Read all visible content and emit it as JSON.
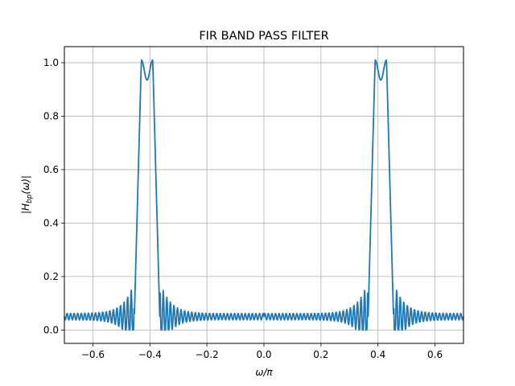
{
  "chart_data": {
    "type": "line",
    "title": "FIR BAND PASS FILTER",
    "xlabel": "ω/π",
    "ylabel_base": "|H",
    "ylabel_sub": "bp",
    "ylabel_tail": "(ω)|",
    "xlim": [
      -0.7,
      0.7
    ],
    "ylim": [
      -0.05,
      1.06
    ],
    "grid": true,
    "line_color": "#1f77b4",
    "xticks": [
      -0.6,
      -0.4,
      -0.2,
      0.0,
      0.2,
      0.4,
      0.6
    ],
    "xtick_labels": [
      "−0.6",
      "−0.4",
      "−0.2",
      "0.0",
      "0.2",
      "0.4",
      "0.6"
    ],
    "yticks": [
      0.0,
      0.2,
      0.4,
      0.6,
      0.8,
      1.0
    ],
    "ytick_labels": [
      "0.0",
      "0.2",
      "0.4",
      "0.6",
      "0.8",
      "1.0"
    ],
    "series": [
      {
        "description": "Symmetric magnitude response |H_bp(ω)|, key points for ω/π ≥ 0 (mirror for negative)",
        "x": [
          0.0,
          0.1,
          0.2,
          0.3,
          0.34,
          0.36,
          0.37,
          0.38,
          0.385,
          0.39,
          0.395,
          0.4,
          0.41,
          0.415,
          0.42,
          0.43,
          0.435,
          0.44,
          0.445,
          0.45,
          0.455,
          0.46,
          0.48,
          0.5,
          0.55,
          0.6,
          0.65,
          0.7
        ],
        "y": [
          0.05,
          0.05,
          0.05,
          0.05,
          0.06,
          0.07,
          0.09,
          0.15,
          0.4,
          0.9,
          1.01,
          0.94,
          0.94,
          0.94,
          0.96,
          1.01,
          0.8,
          0.35,
          0.12,
          0.03,
          0.15,
          0.04,
          0.09,
          0.06,
          0.055,
          0.05,
          0.05,
          0.05
        ]
      }
    ]
  }
}
